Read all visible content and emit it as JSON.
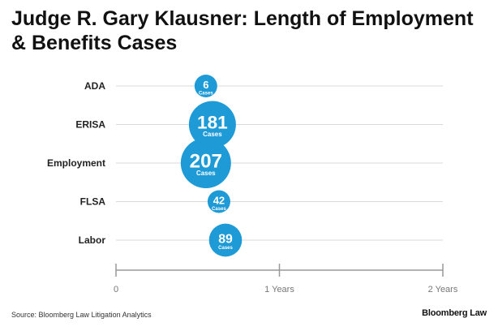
{
  "title": "Judge R. Gary Klausner: Length of Employment & Benefits Cases",
  "source": "Source: Bloomberg Law Litigation Analytics",
  "brand": "Bloomberg Law",
  "colors": {
    "bubble": "#1e9ad6",
    "grid": "#d9d9d9",
    "axis": "#999999"
  },
  "chart_data": {
    "type": "scatter",
    "title": "Judge R. Gary Klausner: Length of Employment & Benefits Cases",
    "xlabel": "",
    "ylabel": "",
    "xlim": [
      0,
      2
    ],
    "x_ticks": [
      {
        "value": 0,
        "label": "0"
      },
      {
        "value": 1,
        "label": "1 Years"
      },
      {
        "value": 2,
        "label": "2 Years"
      }
    ],
    "count_unit": "Cases",
    "categories": [
      "ADA",
      "ERISA",
      "Employment",
      "FLSA",
      "Labor"
    ],
    "points": [
      {
        "category": "ADA",
        "years": 0.55,
        "cases": 6,
        "cases_label": "6"
      },
      {
        "category": "ERISA",
        "years": 0.59,
        "cases": 181,
        "cases_label": "181"
      },
      {
        "category": "Employment",
        "years": 0.55,
        "cases": 207,
        "cases_label": "207"
      },
      {
        "category": "FLSA",
        "years": 0.63,
        "cases": 42,
        "cases_label": "42"
      },
      {
        "category": "Labor",
        "years": 0.67,
        "cases": 89,
        "cases_label": "89"
      }
    ]
  }
}
